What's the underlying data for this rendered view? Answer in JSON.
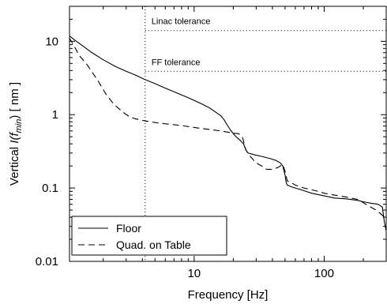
{
  "chart_data": {
    "type": "line",
    "title": "",
    "xlabel": "Frequency [Hz]",
    "ylabel_parts": {
      "prefix": "Vertical ",
      "italic": "I(f",
      "sub": "min",
      "close": ")",
      "unit": " [ nm ]"
    },
    "xscale": "log",
    "yscale": "log",
    "xlim": [
      1.1,
      300
    ],
    "ylim": [
      0.01,
      30
    ],
    "xticks": [
      {
        "value": 10,
        "label": "10"
      },
      {
        "value": 100,
        "label": "100"
      }
    ],
    "yticks": [
      {
        "value": 0.01,
        "label": "0.01"
      },
      {
        "value": 0.1,
        "label": "0.1"
      },
      {
        "value": 1,
        "label": "1"
      },
      {
        "value": 10,
        "label": "10"
      }
    ],
    "grid": false,
    "legend": {
      "position": "bottom-left",
      "entries": [
        "Floor",
        "Quad. on Table"
      ]
    },
    "annotations": [
      {
        "text": "Linac tolerance",
        "y": 14
      },
      {
        "text": "FF tolerance",
        "y": 3.9
      }
    ],
    "reference_lines": [
      {
        "axis": "x",
        "value": 4.2
      }
    ],
    "series": [
      {
        "name": "Floor",
        "style": "solid",
        "x": [
          1.1,
          1.2,
          1.4,
          1.6,
          2.0,
          2.5,
          3.0,
          3.5,
          4.2,
          5.0,
          6.0,
          7.5,
          9.0,
          11.0,
          13.0,
          15.0,
          16.0,
          17.0,
          18.0,
          19.0,
          20.0,
          21.0,
          22.5,
          24.0,
          25.0,
          26.0,
          28.0,
          30.0,
          33.0,
          36.0,
          39.0,
          42.0,
          44.0,
          46.0,
          48.0,
          50.0,
          51.0,
          52.0,
          55.0,
          60.0,
          70.0,
          80.0,
          100.0,
          120.0,
          150.0,
          180.0,
          200.0,
          230.0,
          260.0,
          280.0,
          290.0,
          300.0
        ],
        "values": [
          11.8,
          10.5,
          8.6,
          7.2,
          5.6,
          4.5,
          3.9,
          3.5,
          3.0,
          2.65,
          2.3,
          1.95,
          1.7,
          1.45,
          1.25,
          1.05,
          0.97,
          0.85,
          0.72,
          0.62,
          0.55,
          0.5,
          0.45,
          0.4,
          0.33,
          0.3,
          0.29,
          0.28,
          0.27,
          0.26,
          0.25,
          0.24,
          0.23,
          0.22,
          0.2,
          0.15,
          0.12,
          0.11,
          0.105,
          0.1,
          0.092,
          0.085,
          0.078,
          0.073,
          0.071,
          0.068,
          0.065,
          0.062,
          0.06,
          0.055,
          0.035,
          0.026
        ]
      },
      {
        "name": "Quad. on Table",
        "style": "dashed",
        "x": [
          1.1,
          1.2,
          1.3,
          1.5,
          1.8,
          2.1,
          2.4,
          2.8,
          3.2,
          3.6,
          4.2,
          5.0,
          6.0,
          7.0,
          8.0,
          10.0,
          12.0,
          14.0,
          16.0,
          18.0,
          20.0,
          22.0,
          23.5,
          25.0,
          27.0,
          30.0,
          33.0,
          36.0,
          40.0,
          44.0,
          48.0,
          50.0,
          52.0,
          55.0,
          60.0,
          70.0,
          80.0,
          90.0,
          100.0,
          120.0,
          150.0,
          180.0,
          200.0,
          220.0,
          250.0,
          270.0,
          290.0,
          300.0
        ],
        "values": [
          11.0,
          8.5,
          6.5,
          4.8,
          3.0,
          1.9,
          1.4,
          1.1,
          0.93,
          0.87,
          0.82,
          0.78,
          0.75,
          0.73,
          0.71,
          0.67,
          0.64,
          0.62,
          0.6,
          0.58,
          0.56,
          0.55,
          0.5,
          0.33,
          0.27,
          0.22,
          0.2,
          0.18,
          0.18,
          0.19,
          0.21,
          0.17,
          0.125,
          0.12,
          0.11,
          0.1,
          0.095,
          0.09,
          0.085,
          0.08,
          0.075,
          0.07,
          0.063,
          0.057,
          0.05,
          0.045,
          0.04,
          0.038
        ]
      }
    ]
  }
}
